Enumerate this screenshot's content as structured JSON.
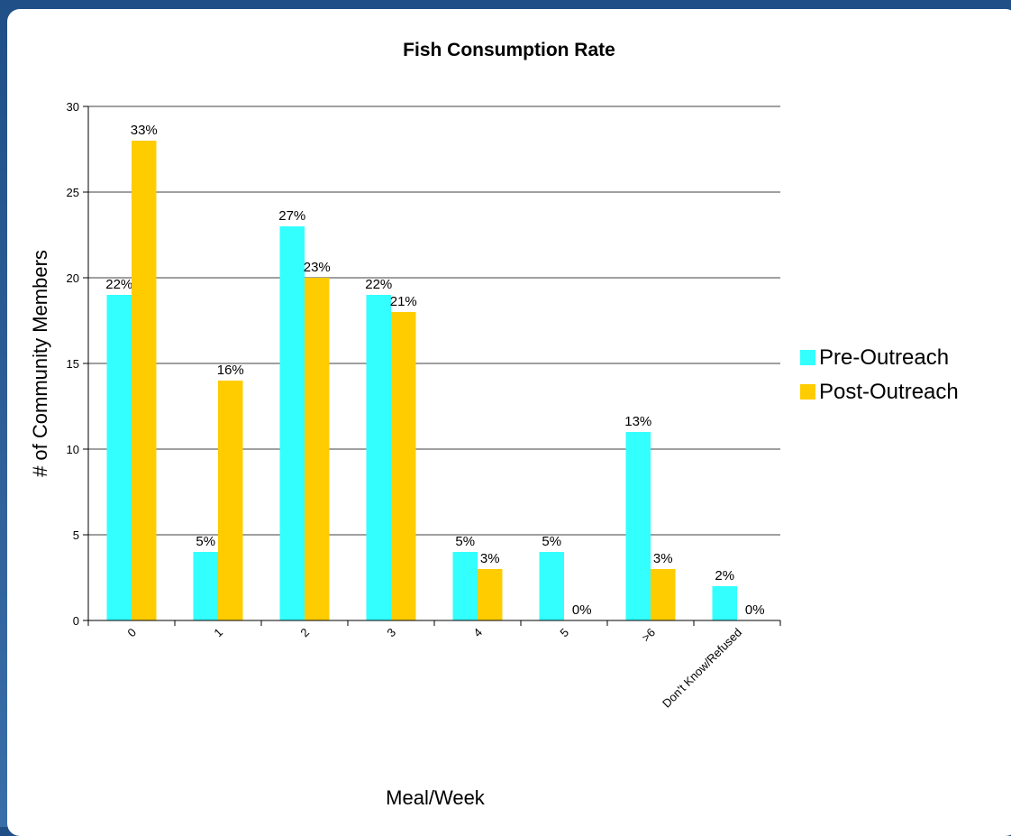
{
  "chart_data": {
    "type": "bar",
    "title": "Fish Consumption Rate",
    "xlabel": "Meal/Week",
    "ylabel": "# of Community Members",
    "categories": [
      "0",
      "1",
      "2",
      "3",
      "4",
      "5",
      ">6",
      "Don't Know/Refused"
    ],
    "series": [
      {
        "name": "Pre-Outreach",
        "color": "#33ffff",
        "values": [
          19,
          4,
          23,
          19,
          4,
          4,
          11,
          2
        ],
        "labels": [
          "22%",
          "5%",
          "27%",
          "22%",
          "5%",
          "5%",
          "13%",
          "2%"
        ]
      },
      {
        "name": "Post-Outreach",
        "color": "#ffcc00",
        "values": [
          28,
          14,
          20,
          18,
          3,
          0,
          3,
          0
        ],
        "labels": [
          "33%",
          "16%",
          "23%",
          "21%",
          "3%",
          "0%",
          "3%",
          "0%"
        ]
      }
    ],
    "ylim": [
      0,
      30
    ],
    "yticks": [
      0,
      5,
      10,
      15,
      20,
      25,
      30
    ],
    "grid": true,
    "legend": "right"
  }
}
